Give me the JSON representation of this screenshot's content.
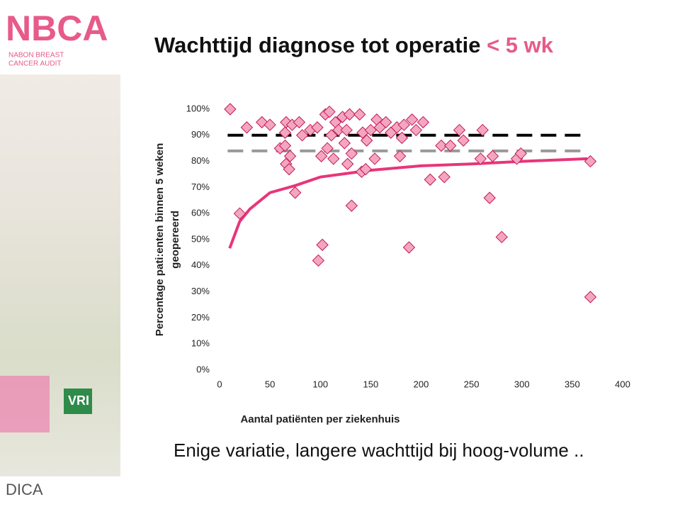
{
  "header": {
    "logo": "NBCA",
    "logo_sub": [
      "NABON BREAST",
      "CANCER AUDIT"
    ],
    "footer_logo": "DICA",
    "photo_label": "VRI"
  },
  "chart_data": {
    "type": "scatter",
    "title": "Wachttijd diagnose tot operatie",
    "title_highlight": "< 5 wk",
    "subtitle": "Enige variatie, langere wachttijd bij hoog-volume ..",
    "x_label": "Aantal patiënten per ziekenhuis",
    "y_label": [
      "Percentage pati:enten binnen 5 weken",
      "geopereerd"
    ],
    "xlim": [
      0,
      400
    ],
    "xticks": [
      0,
      50,
      100,
      150,
      200,
      250,
      300,
      350,
      400
    ],
    "ylim": [
      0,
      100
    ],
    "yticks": [
      {
        "value": 0,
        "label": "0%"
      },
      {
        "value": 10,
        "label": "10%"
      },
      {
        "value": 20,
        "label": "20%"
      },
      {
        "value": 30,
        "label": "30%"
      },
      {
        "value": 40,
        "label": "40%"
      },
      {
        "value": 50,
        "label": "50%"
      },
      {
        "value": 60,
        "label": "60%"
      },
      {
        "value": 70,
        "label": "70%"
      },
      {
        "value": 80,
        "label": "80%"
      },
      {
        "value": 90,
        "label": "90%"
      },
      {
        "value": 100,
        "label": "100%"
      }
    ],
    "series": [
      {
        "type": "line",
        "color": "#000000",
        "dash": true,
        "x": [
          8,
          365
        ],
        "values": [
          90,
          90
        ]
      },
      {
        "type": "line",
        "color": "#999999",
        "dash": true,
        "x": [
          8,
          365
        ],
        "values": [
          84,
          84
        ]
      },
      {
        "type": "line",
        "color": "#e8357a",
        "dash": false,
        "x": [
          10,
          20,
          30,
          50,
          75,
          100,
          150,
          200,
          250,
          300,
          365
        ],
        "values": [
          46.7,
          57,
          61.7,
          68,
          70.7,
          74,
          76.6,
          78.3,
          79,
          80,
          81
        ]
      },
      {
        "type": "scatter",
        "color": "#f4a6bf",
        "stroke": "#c2185b",
        "x": [
          10.5,
          20,
          27,
          42,
          50,
          60,
          65,
          65,
          66,
          66,
          69,
          70,
          72,
          75,
          79,
          82,
          90,
          97,
          98,
          101,
          102,
          105,
          107,
          109,
          111,
          113,
          115,
          118,
          122,
          124,
          126,
          127,
          129,
          131,
          131,
          139,
          141,
          142,
          145,
          146,
          150,
          154,
          156,
          159,
          165,
          170,
          176,
          179,
          181,
          183,
          188,
          191,
          195,
          202,
          209,
          220,
          223,
          229,
          238,
          242,
          259,
          261,
          268,
          271,
          280,
          295,
          299,
          368,
          368
        ],
        "values": [
          100,
          60,
          93,
          95,
          94,
          85,
          86,
          91,
          95,
          79,
          77,
          82,
          94,
          68,
          95,
          90,
          92,
          93,
          42,
          82,
          48,
          98,
          85,
          99,
          90,
          81,
          95,
          92,
          97,
          87,
          92,
          79,
          98,
          83,
          63,
          98,
          76,
          91,
          77,
          88,
          92,
          81,
          96,
          93,
          95,
          91,
          93,
          82,
          89,
          94,
          47,
          96,
          92,
          95,
          73,
          86,
          74,
          86,
          92,
          88,
          81,
          92,
          66,
          82,
          51,
          81,
          83,
          80,
          28
        ]
      }
    ]
  }
}
